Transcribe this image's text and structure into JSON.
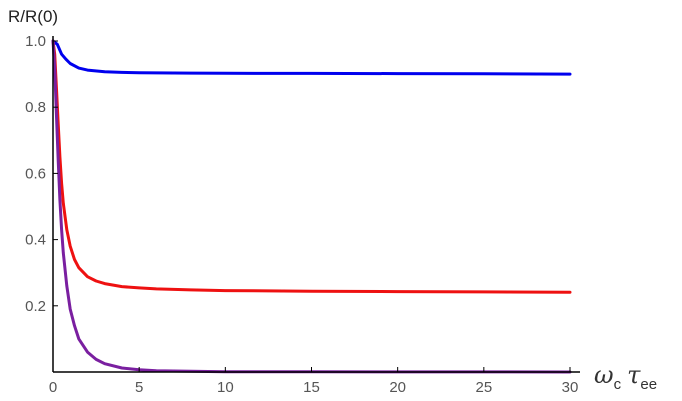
{
  "chart_data": {
    "type": "line",
    "title": "",
    "ylabel": "R/R(0)",
    "xlabel": {
      "symbol1": "ω",
      "sub1": "c",
      "symbol2": "τ",
      "sub2": "ee"
    },
    "xlim": [
      0,
      30
    ],
    "ylim": [
      0,
      1.0
    ],
    "xticks": [
      0,
      5,
      10,
      15,
      20,
      25,
      30
    ],
    "yticks": [
      0.2,
      0.4,
      0.6,
      0.8,
      1.0
    ],
    "ytick_labels": [
      "0.2",
      "0.4",
      "0.6",
      "0.8",
      "1.0"
    ],
    "grid": false,
    "legend": "none",
    "series": [
      {
        "color": "#0000ee",
        "x": [
          0,
          0.25,
          0.5,
          0.75,
          1,
          1.5,
          2,
          3,
          4,
          5,
          6,
          8,
          10,
          12,
          15,
          20,
          25,
          30
        ],
        "y": [
          1.0,
          0.99,
          0.96,
          0.945,
          0.932,
          0.918,
          0.912,
          0.907,
          0.905,
          0.904,
          0.9035,
          0.903,
          0.9025,
          0.902,
          0.902,
          0.9015,
          0.901,
          0.9
        ]
      },
      {
        "color": "#ee1111",
        "x": [
          0,
          0.1,
          0.2,
          0.3,
          0.4,
          0.5,
          0.6,
          0.8,
          1.0,
          1.25,
          1.5,
          2,
          2.5,
          3,
          4,
          5,
          6,
          8,
          10,
          15,
          20,
          25,
          30
        ],
        "y": [
          1.0,
          0.96,
          0.86,
          0.75,
          0.65,
          0.57,
          0.51,
          0.43,
          0.38,
          0.34,
          0.315,
          0.288,
          0.275,
          0.267,
          0.258,
          0.254,
          0.251,
          0.248,
          0.246,
          0.244,
          0.243,
          0.242,
          0.241
        ]
      },
      {
        "color": "#7a1fa0",
        "x": [
          0,
          0.1,
          0.2,
          0.3,
          0.4,
          0.5,
          0.6,
          0.8,
          1.0,
          1.25,
          1.5,
          2,
          2.5,
          3,
          4,
          5,
          6,
          8,
          10,
          15,
          20,
          25,
          30
        ],
        "y": [
          1.0,
          0.92,
          0.78,
          0.64,
          0.52,
          0.43,
          0.36,
          0.26,
          0.19,
          0.14,
          0.1,
          0.06,
          0.038,
          0.025,
          0.012,
          0.007,
          0.004,
          0.002,
          0.001,
          0.0005,
          0.0003,
          0.0002,
          0.0001
        ]
      }
    ]
  }
}
